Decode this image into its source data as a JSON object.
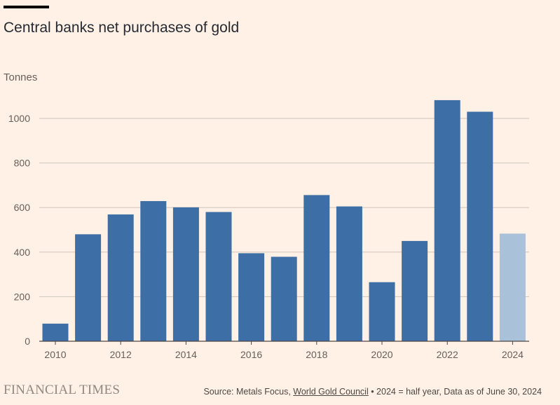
{
  "chart_data": {
    "type": "bar",
    "title": "Central banks net purchases of gold",
    "ylabel": "Tonnes",
    "xlabel": "",
    "ylim": [
      0,
      1080
    ],
    "yticks": [
      0,
      200,
      400,
      600,
      800,
      1000
    ],
    "xtick_labels": [
      "2010",
      "2012",
      "2014",
      "2016",
      "2018",
      "2020",
      "2022",
      "2024"
    ],
    "categories": [
      "2010",
      "2011",
      "2012",
      "2013",
      "2014",
      "2015",
      "2016",
      "2017",
      "2018",
      "2019",
      "2020",
      "2021",
      "2022",
      "2023",
      "2024"
    ],
    "values": [
      79,
      480,
      569,
      629,
      601,
      580,
      395,
      379,
      656,
      605,
      265,
      450,
      1082,
      1030,
      483
    ],
    "highlight": {
      "index": 14,
      "note": "half year"
    },
    "colors": {
      "bar": "#3d6ea5",
      "partial_bar": "#a9c1d9",
      "grid": "#cdc5bd",
      "background": "#fff1e5"
    },
    "grid": true
  },
  "footer": {
    "brand": "FINANCIAL TIMES",
    "source_prefix": "Source: Metals Focus, ",
    "source_link": "World Gold Council",
    "source_suffix": " • 2024 = half year, Data as of June 30, 2024"
  }
}
